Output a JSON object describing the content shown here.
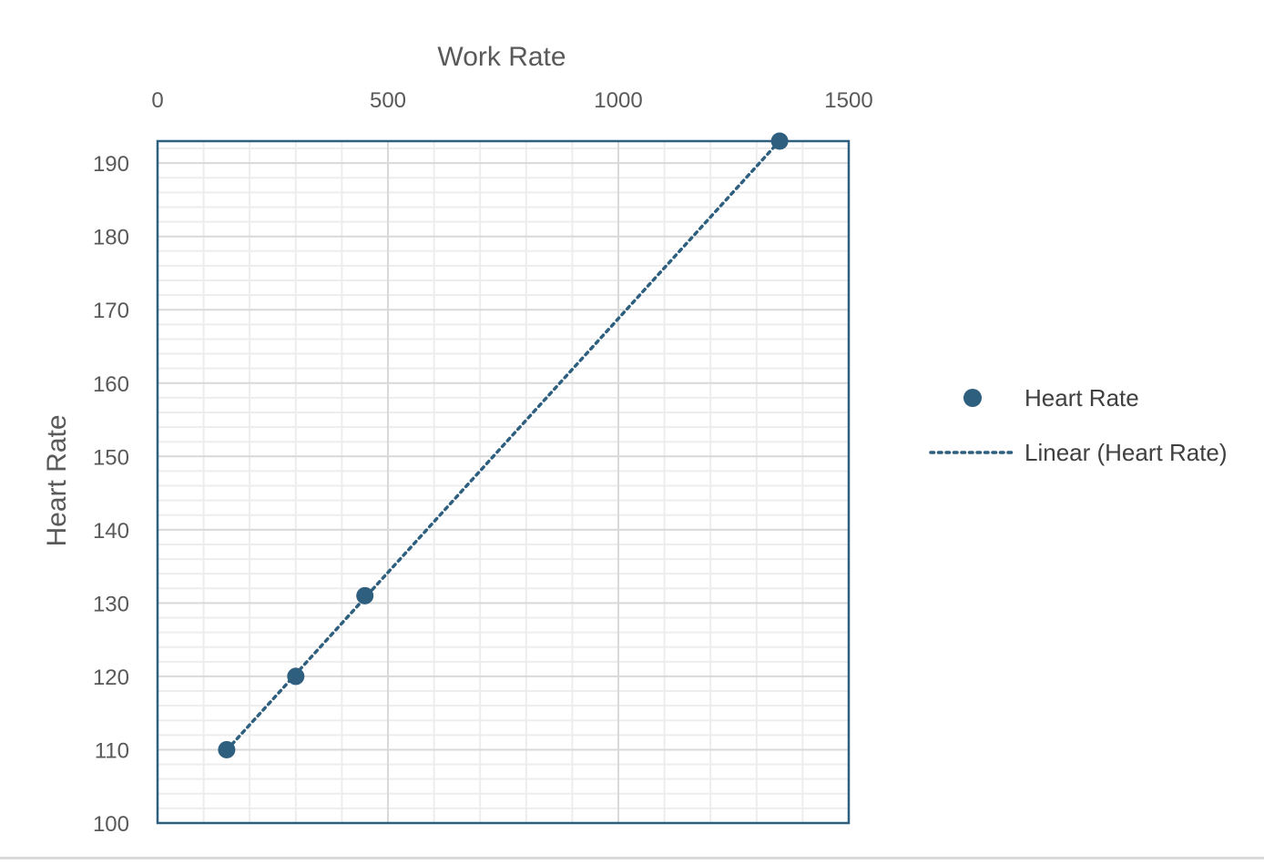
{
  "chart_data": {
    "type": "scatter",
    "title": "",
    "xlabel": "Work Rate",
    "ylabel": "Heart Rate",
    "x_axis_position": "top",
    "xlim": [
      0,
      1500
    ],
    "ylim": [
      100,
      193
    ],
    "x_major_ticks": [
      0,
      500,
      1000,
      1500
    ],
    "x_minor_step": 100,
    "y_major_ticks": [
      100,
      110,
      120,
      130,
      140,
      150,
      160,
      170,
      180,
      190
    ],
    "y_minor_step": 2,
    "grid": true,
    "series": [
      {
        "name": "Heart Rate",
        "x": [
          150,
          300,
          450,
          1350
        ],
        "y": [
          110,
          120,
          131,
          193
        ]
      }
    ],
    "trendline": {
      "name": "Linear (Heart Rate)",
      "type": "linear",
      "style": "dotted",
      "x_range": [
        150,
        1350
      ]
    },
    "legend": {
      "position": "right",
      "entries": [
        "Heart Rate",
        "Linear (Heart Rate)"
      ]
    },
    "colors": {
      "series": "#2e5f7f",
      "grid_major": "#d9d9d9",
      "grid_minor": "#ededed",
      "axis_text": "#595959"
    }
  }
}
